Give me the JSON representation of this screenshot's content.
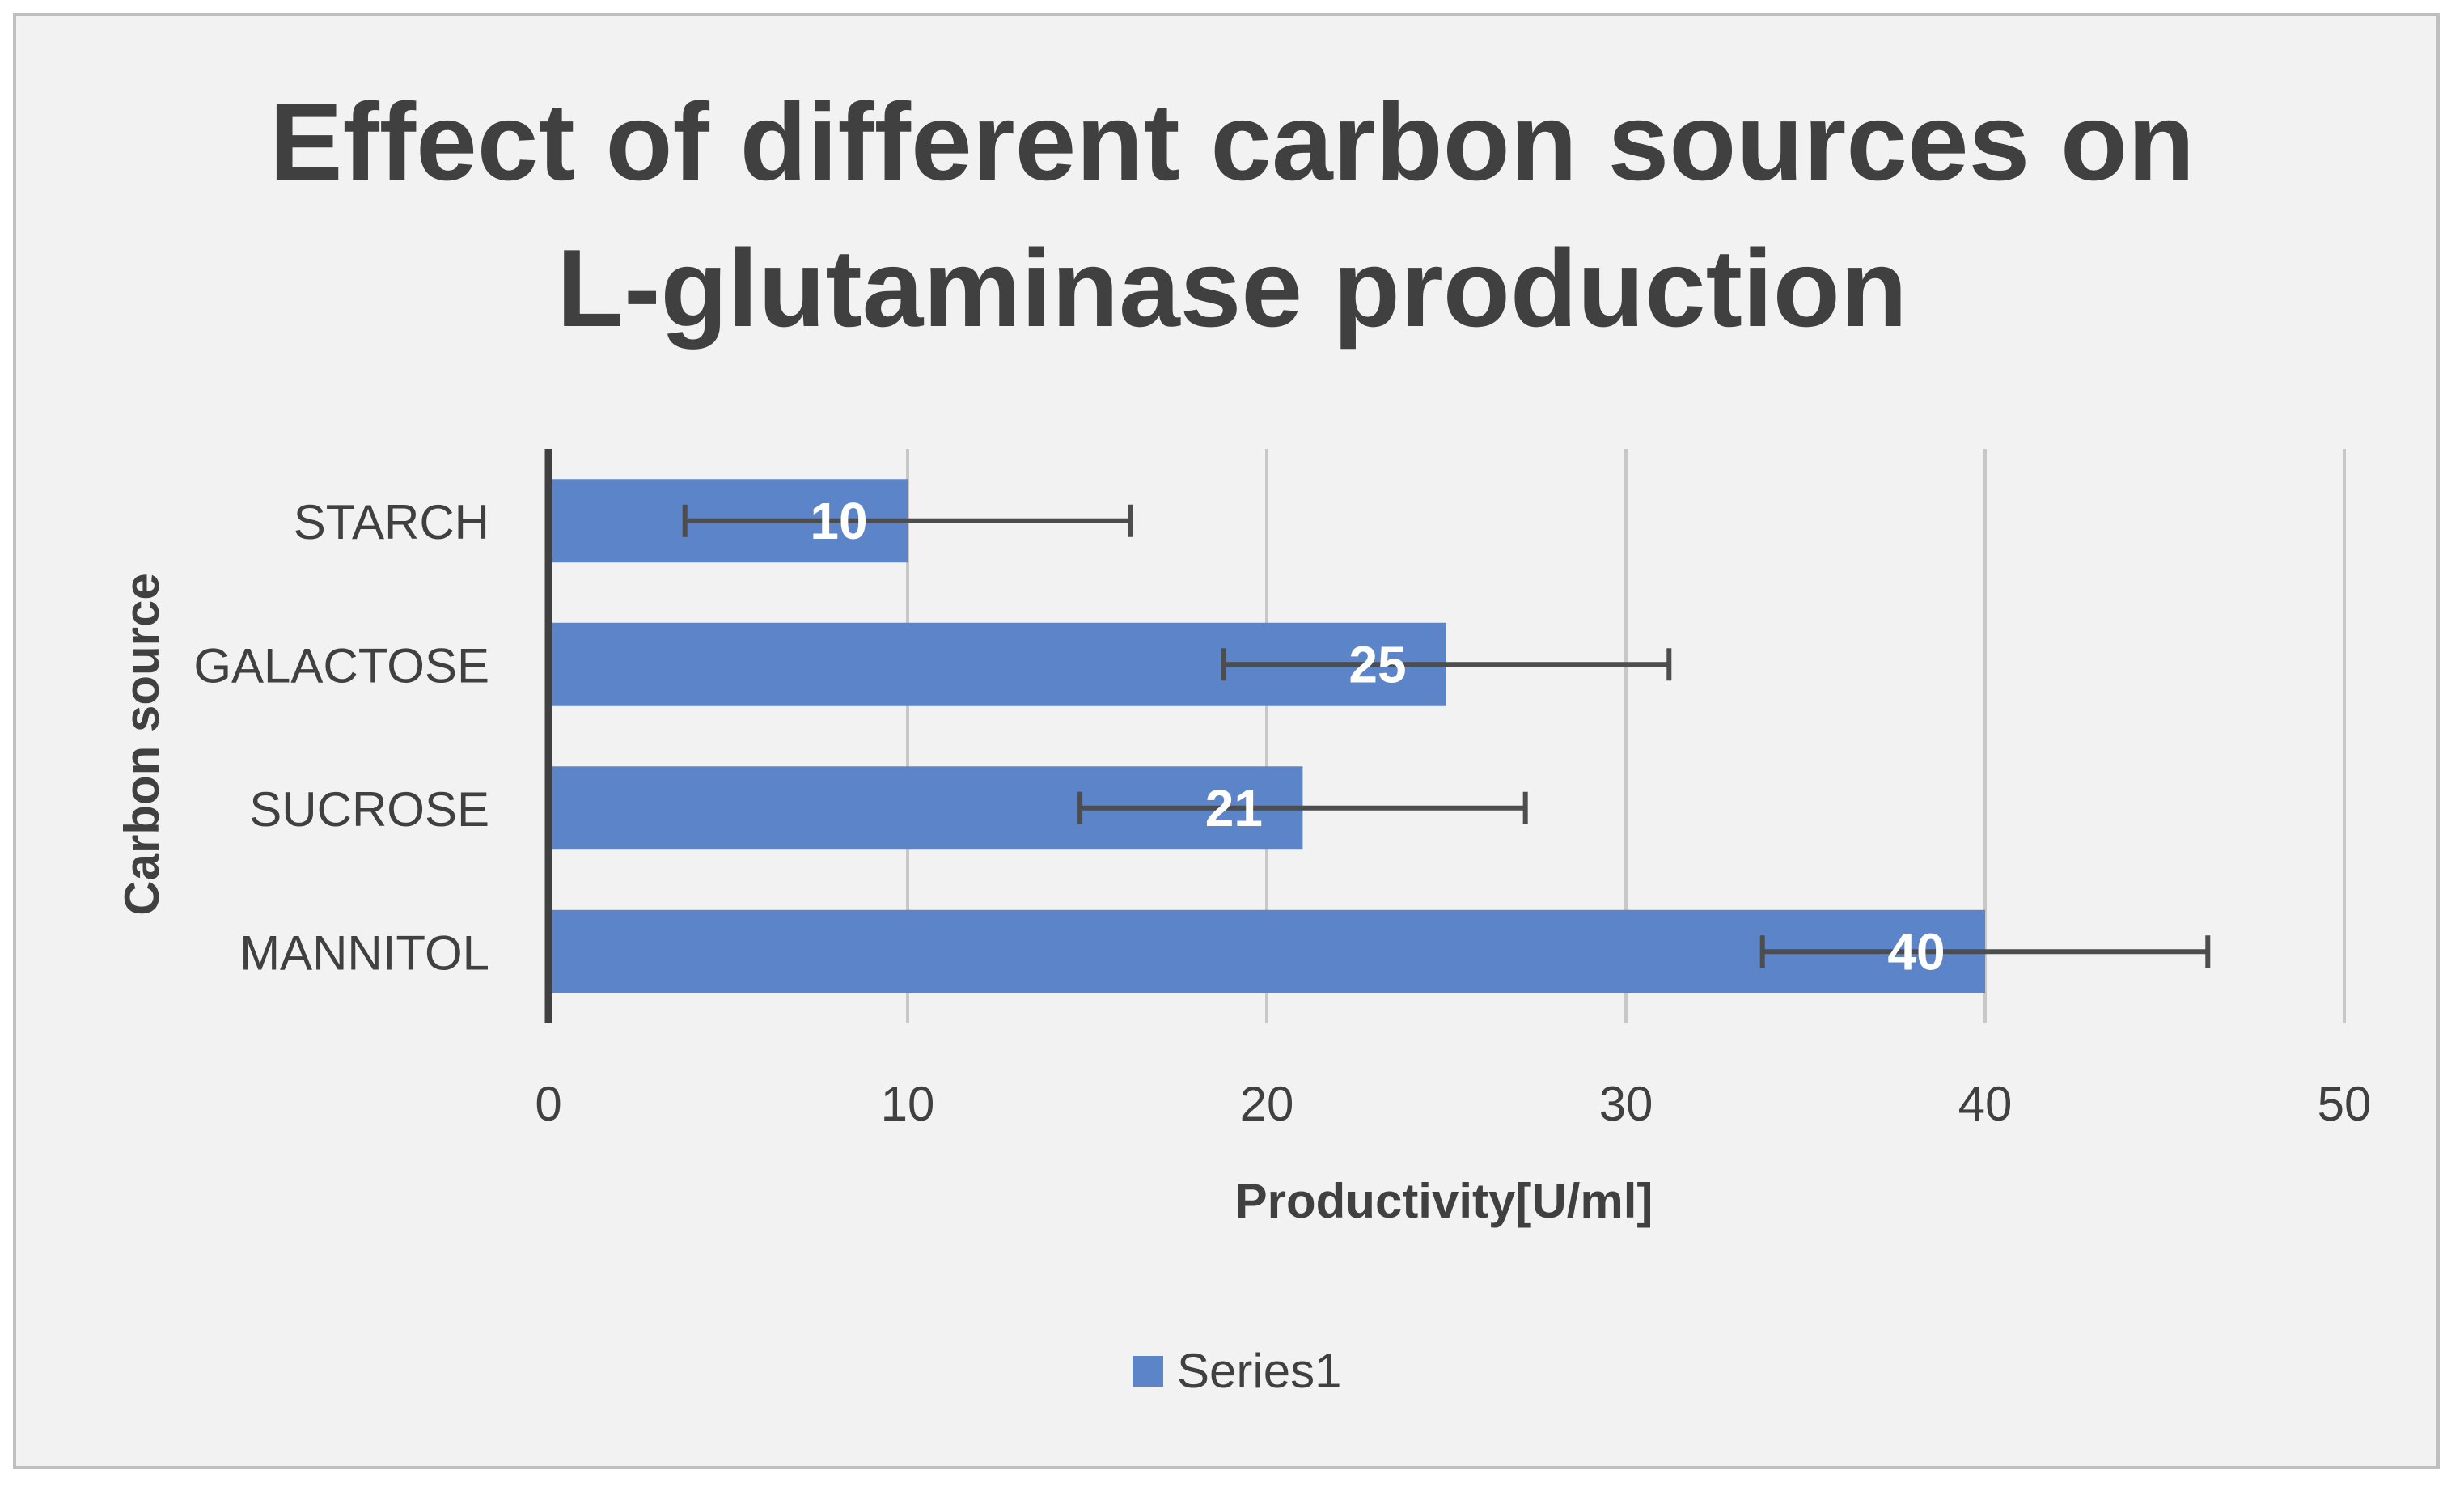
{
  "chart_data": {
    "type": "bar",
    "orientation": "horizontal",
    "title_lines": [
      "Effect of different carbon sources on",
      "L-glutaminase production"
    ],
    "categories": [
      "STARCH",
      "GALACTOSE",
      "SUCROSE",
      "MANNITOL"
    ],
    "series": [
      {
        "name": "Series1",
        "values": [
          10,
          25,
          21,
          40
        ],
        "error_minus": [
          6.2,
          6.2,
          6.2,
          6.2
        ],
        "error_plus": [
          6.2,
          6.2,
          6.2,
          6.2
        ],
        "data_labels": [
          "10",
          "25",
          "21",
          "40"
        ]
      }
    ],
    "xlabel": "Productivity[U/ml]",
    "ylabel": "Carbon source",
    "xlim": [
      0,
      50
    ],
    "xticks": [
      0,
      10,
      20,
      30,
      40,
      50
    ],
    "xtick_labels": [
      "0",
      "10",
      "20",
      "30",
      "40",
      "50"
    ],
    "grid": true,
    "legend_position": "bottom",
    "colors": {
      "bar": "#5b84c9",
      "background": "#f2f2f2",
      "grid": "#c8c8c8",
      "axis": "#404040",
      "error_bar": "#4d4d4d",
      "text": "#404040"
    }
  }
}
